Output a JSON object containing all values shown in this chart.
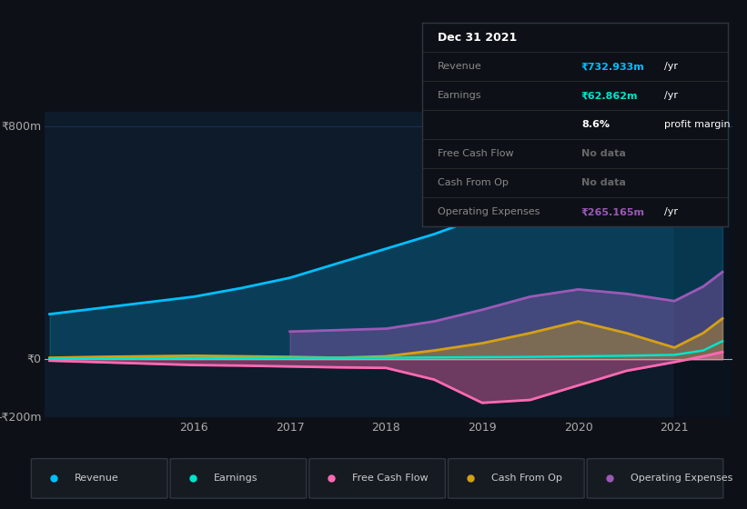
{
  "bg_color": "#0d1117",
  "plot_bg_color": "#0d1b2a",
  "grid_color": "#1e3050",
  "ylim": [
    -200,
    850
  ],
  "xlabel_years": [
    "2016",
    "2017",
    "2018",
    "2019",
    "2020",
    "2021"
  ],
  "revenue_color": "#00bfff",
  "earnings_color": "#00e5cc",
  "fcf_color": "#ff69b4",
  "cashfromop_color": "#d4a017",
  "opex_color": "#9b59b6",
  "legend_bg": "#161b22",
  "legend_border": "#30363d",
  "tooltip_bg": "#0d1117",
  "tooltip_border": "#30363d",
  "x": [
    2014.5,
    2015.0,
    2015.5,
    2016.0,
    2016.5,
    2017.0,
    2017.5,
    2018.0,
    2018.5,
    2019.0,
    2019.5,
    2020.0,
    2020.5,
    2021.0,
    2021.3,
    2021.5
  ],
  "revenue": [
    155,
    175,
    195,
    215,
    245,
    280,
    330,
    380,
    430,
    490,
    565,
    620,
    575,
    565,
    690,
    820
  ],
  "earnings": [
    2,
    3,
    3,
    4,
    4,
    5,
    5,
    5,
    6,
    7,
    8,
    10,
    12,
    15,
    30,
    62
  ],
  "free_cash_flow": [
    -5,
    -10,
    -15,
    -20,
    -22,
    -25,
    -28,
    -30,
    -70,
    -150,
    -140,
    -90,
    -40,
    -10,
    10,
    25
  ],
  "cash_from_op": [
    5,
    8,
    10,
    12,
    10,
    8,
    5,
    10,
    30,
    55,
    90,
    130,
    90,
    40,
    90,
    140
  ],
  "opex": [
    0,
    0,
    0,
    0,
    0,
    95,
    100,
    105,
    130,
    170,
    215,
    240,
    225,
    200,
    250,
    300
  ],
  "tooltip_rows": [
    {
      "label": "Dec 31 2021",
      "value": "",
      "suffix": "",
      "header": true
    },
    {
      "label": "Revenue",
      "value": "₹732.933m",
      "suffix": "/yr",
      "header": false
    },
    {
      "label": "Earnings",
      "value": "₹62.862m",
      "suffix": "/yr",
      "header": false
    },
    {
      "label": "",
      "value": "8.6%",
      "suffix": "profit margin",
      "header": false
    },
    {
      "label": "Free Cash Flow",
      "value": "No data",
      "suffix": "",
      "header": false
    },
    {
      "label": "Cash From Op",
      "value": "No data",
      "suffix": "",
      "header": false
    },
    {
      "label": "Operating Expenses",
      "value": "₹265.165m",
      "suffix": "/yr",
      "header": false
    }
  ],
  "legend_items": [
    {
      "label": "Revenue",
      "color": "#00bfff"
    },
    {
      "label": "Earnings",
      "color": "#00e5cc"
    },
    {
      "label": "Free Cash Flow",
      "color": "#ff69b4"
    },
    {
      "label": "Cash From Op",
      "color": "#d4a017"
    },
    {
      "label": "Operating Expenses",
      "color": "#9b59b6"
    }
  ],
  "value_colors": {
    "Revenue": "#00bfff",
    "Earnings": "#00e5cc",
    "Operating Expenses": "#9b59b6"
  }
}
